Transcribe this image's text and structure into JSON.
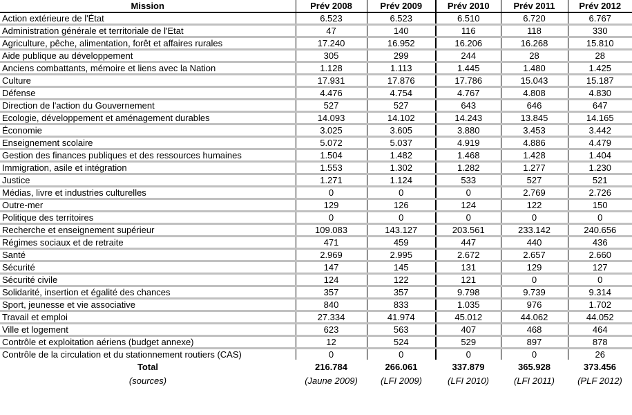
{
  "table": {
    "header": {
      "mission": "Mission",
      "columns": [
        "Prév 2008",
        "Prév 2009",
        "Prév 2010",
        "Prév 2011",
        "Prév 2012"
      ]
    },
    "rows": [
      {
        "mission": "Action extérieure de l'État",
        "values": [
          "6.523",
          "6.523",
          "6.510",
          "6.720",
          "6.767"
        ]
      },
      {
        "mission": "Administration générale et territoriale de l'Etat",
        "values": [
          "47",
          "140",
          "116",
          "118",
          "330"
        ]
      },
      {
        "mission": "Agriculture, pêche, alimentation, forêt et affaires rurales",
        "values": [
          "17.240",
          "16.952",
          "16.206",
          "16.268",
          "15.810"
        ]
      },
      {
        "mission": "Aide publique au développement",
        "values": [
          "305",
          "299",
          "244",
          "28",
          "28"
        ]
      },
      {
        "mission": "Anciens combattants, mémoire et liens avec la Nation",
        "values": [
          "1.128",
          "1.113",
          "1.445",
          "1.480",
          "1.425"
        ]
      },
      {
        "mission": "Culture",
        "values": [
          "17.931",
          "17.876",
          "17.786",
          "15.043",
          "15.187"
        ]
      },
      {
        "mission": "Défense",
        "values": [
          "4.476",
          "4.754",
          "4.767",
          "4.808",
          "4.830"
        ]
      },
      {
        "mission": "Direction de l'action du Gouvernement",
        "values": [
          "527",
          "527",
          "643",
          "646",
          "647"
        ]
      },
      {
        "mission": "Ecologie, développement et aménagement durables",
        "values": [
          "14.093",
          "14.102",
          "14.243",
          "13.845",
          "14.165"
        ]
      },
      {
        "mission": "Économie",
        "values": [
          "3.025",
          "3.605",
          "3.880",
          "3.453",
          "3.442"
        ]
      },
      {
        "mission": "Enseignement scolaire",
        "values": [
          "5.072",
          "5.037",
          "4.919",
          "4.886",
          "4.479"
        ]
      },
      {
        "mission": "Gestion des finances publiques et des ressources humaines",
        "values": [
          "1.504",
          "1.482",
          "1.468",
          "1.428",
          "1.404"
        ]
      },
      {
        "mission": "Immigration, asile et intégration",
        "values": [
          "1.553",
          "1.302",
          "1.282",
          "1.277",
          "1.230"
        ]
      },
      {
        "mission": "Justice",
        "values": [
          "1.271",
          "1.124",
          "533",
          "527",
          "521"
        ]
      },
      {
        "mission": "Médias, livre et industries culturelles",
        "values": [
          "0",
          "0",
          "0",
          "2.769",
          "2.726"
        ]
      },
      {
        "mission": "Outre-mer",
        "values": [
          "129",
          "126",
          "124",
          "122",
          "150"
        ]
      },
      {
        "mission": "Politique des territoires",
        "values": [
          "0",
          "0",
          "0",
          "0",
          "0"
        ]
      },
      {
        "mission": "Recherche et enseignement supérieur",
        "values": [
          "109.083",
          "143.127",
          "203.561",
          "233.142",
          "240.656"
        ]
      },
      {
        "mission": "Régimes sociaux et de retraite",
        "values": [
          "471",
          "459",
          "447",
          "440",
          "436"
        ]
      },
      {
        "mission": "Santé",
        "values": [
          "2.969",
          "2.995",
          "2.672",
          "2.657",
          "2.660"
        ]
      },
      {
        "mission": "Sécurité",
        "values": [
          "147",
          "145",
          "131",
          "129",
          "127"
        ]
      },
      {
        "mission": "Sécurité civile",
        "values": [
          "124",
          "122",
          "121",
          "0",
          "0"
        ]
      },
      {
        "mission": "Solidarité, insertion et égalité des chances",
        "values": [
          "357",
          "357",
          "9.798",
          "9.739",
          "9.314"
        ]
      },
      {
        "mission": "Sport, jeunesse et vie associative",
        "values": [
          "840",
          "833",
          "1.035",
          "976",
          "1.702"
        ]
      },
      {
        "mission": "Travail et emploi",
        "values": [
          "27.334",
          "41.974",
          "45.012",
          "44.062",
          "44.052"
        ]
      },
      {
        "mission": "Ville et logement",
        "values": [
          "623",
          "563",
          "407",
          "468",
          "464"
        ]
      },
      {
        "mission": "Contrôle et exploitation aériens (budget annexe)",
        "values": [
          "12",
          "524",
          "529",
          "897",
          "878"
        ]
      },
      {
        "mission": "Contrôle de la circulation et du stationnement routiers (CAS)",
        "values": [
          "0",
          "0",
          "0",
          "0",
          "26"
        ]
      }
    ],
    "total": {
      "label": "Total",
      "values": [
        "216.784",
        "266.061",
        "337.879",
        "365.928",
        "373.456"
      ]
    },
    "sources": {
      "label": "(sources)",
      "values": [
        "(Jaune 2009)",
        "(LFI 2009)",
        "(LFI 2010)",
        "(LFI 2011)",
        "(PLF 2012)"
      ]
    }
  },
  "colors": {
    "row_separator": "#c0c0c0",
    "header_border": "#000000",
    "column_divider": "#000000",
    "text": "#000000",
    "background": "#ffffff"
  }
}
